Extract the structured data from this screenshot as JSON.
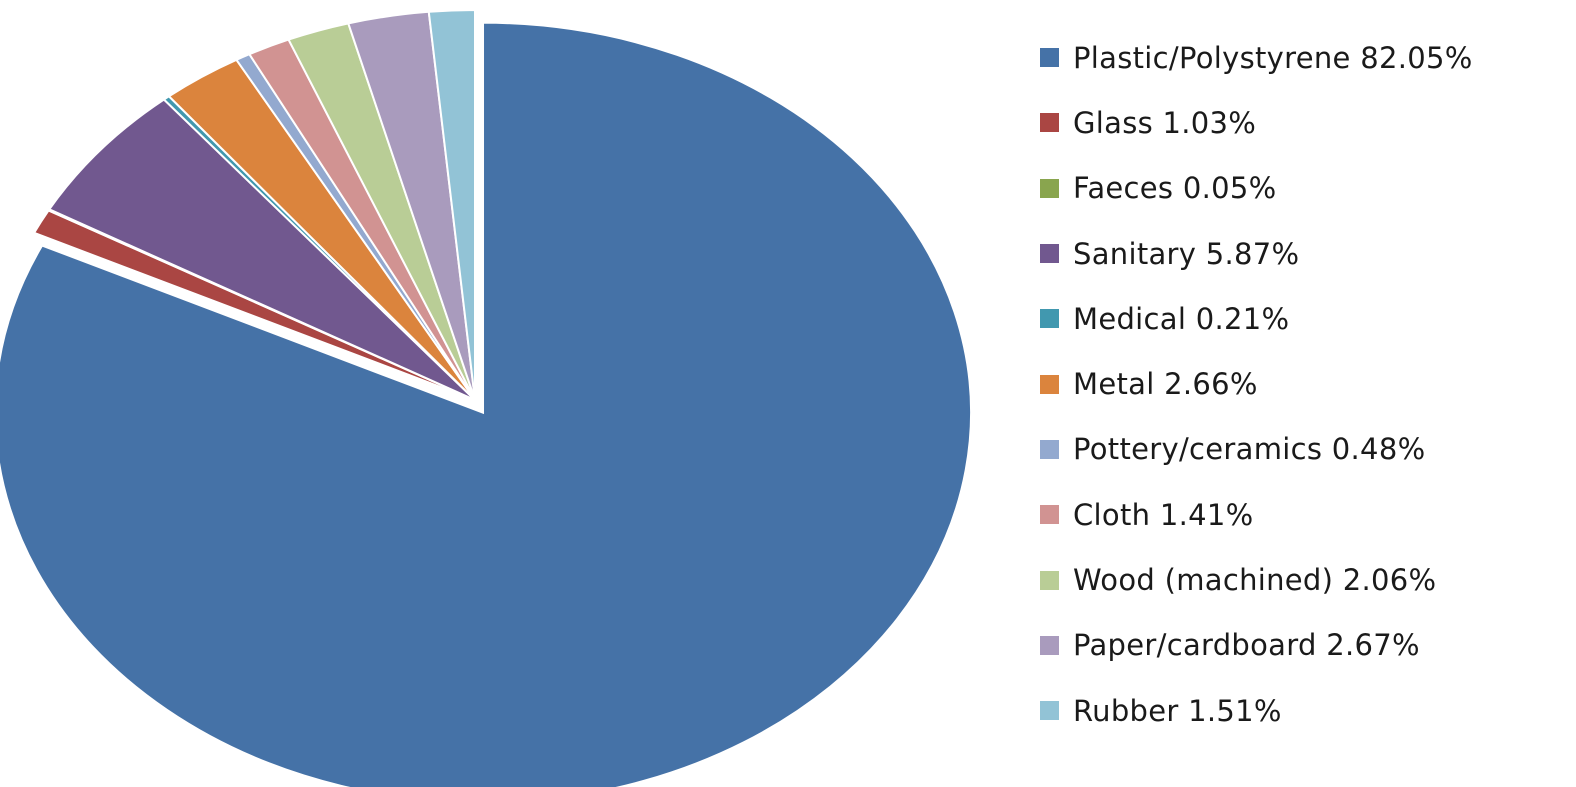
{
  "chart_data": {
    "type": "pie",
    "series": [
      {
        "name": "Plastic/Polystyrene",
        "value": 82.05,
        "label": "Plastic/Polystyrene 82.05%",
        "color": "#4572a7"
      },
      {
        "name": "Glass",
        "value": 1.03,
        "label": "Glass 1.03%",
        "color": "#aa4643"
      },
      {
        "name": "Faeces",
        "value": 0.05,
        "label": "Faeces 0.05%",
        "color": "#89a54e"
      },
      {
        "name": "Sanitary",
        "value": 5.87,
        "label": "Sanitary 5.87%",
        "color": "#71588f"
      },
      {
        "name": "Medical",
        "value": 0.21,
        "label": "Medical 0.21%",
        "color": "#4198af"
      },
      {
        "name": "Metal",
        "value": 2.66,
        "label": "Metal 2.66%",
        "color": "#db843d"
      },
      {
        "name": "Pottery/ceramics",
        "value": 0.48,
        "label": "Pottery/ceramics 0.48%",
        "color": "#93a9cf"
      },
      {
        "name": "Cloth",
        "value": 1.41,
        "label": "Cloth 1.41%",
        "color": "#d19392"
      },
      {
        "name": "Wood (machined)",
        "value": 2.06,
        "label": "Wood (machined) 2.06%",
        "color": "#b9cd96"
      },
      {
        "name": "Paper/cardboard",
        "value": 2.67,
        "label": "Paper/cardboard 2.67%",
        "color": "#a99bbd"
      },
      {
        "name": "Rubber",
        "value": 1.51,
        "label": "Rubber 1.51%",
        "color": "#92c3d6"
      }
    ],
    "legend_position": "right",
    "start": "top, clockwise",
    "exploded_slice": "Plastic/Polystyrene"
  }
}
